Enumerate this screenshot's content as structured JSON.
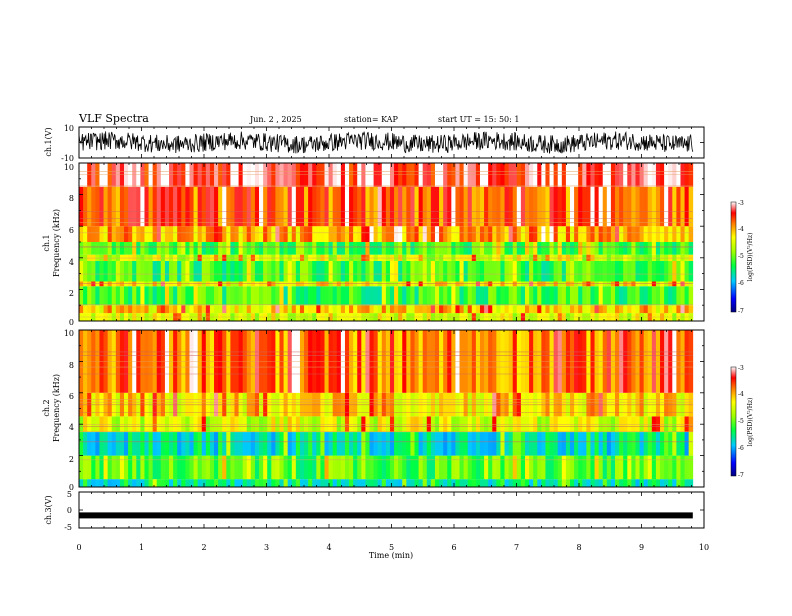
{
  "header": {
    "title": "VLF Spectra",
    "date": "Jun. 2 , 2025",
    "station": "station= KAP",
    "start_ut": "start UT =   15: 50: 1"
  },
  "chart_data": {
    "type": "heatmap",
    "x_axis": {
      "label": "Time (min)",
      "range": [
        0,
        10
      ],
      "ticks": [
        "0",
        "1",
        "2",
        "3",
        "4",
        "5",
        "6",
        "7",
        "8",
        "9",
        "10"
      ]
    },
    "panels": [
      {
        "id": "ch1_waveform",
        "type": "line",
        "ylabel": "ch.1(V)",
        "ylim": [
          -10,
          10
        ],
        "yticks": [
          "10",
          "-10"
        ]
      },
      {
        "id": "ch1_spectrum",
        "type": "heatmap",
        "ylabel": "ch.1",
        "ylabel2": "Frequency (kHz)",
        "ylim": [
          0,
          10
        ],
        "yticks": [
          "0",
          "2",
          "4",
          "6",
          "8",
          "10"
        ],
        "colorbar": {
          "label": "log(PSD)(V²/Hz)",
          "range": [
            -7,
            -3
          ],
          "ticks": [
            "-3",
            "-4",
            "-5",
            "-6",
            "-7"
          ]
        },
        "bands": [
          {
            "fmin": 0.0,
            "fmax": 0.5,
            "level": -4.5
          },
          {
            "fmin": 0.5,
            "fmax": 1.0,
            "level": -4.2
          },
          {
            "fmin": 1.0,
            "fmax": 2.2,
            "level": -5.2
          },
          {
            "fmin": 2.2,
            "fmax": 2.5,
            "level": -4.3
          },
          {
            "fmin": 2.5,
            "fmax": 3.8,
            "level": -5.2
          },
          {
            "fmin": 3.8,
            "fmax": 4.2,
            "level": -4.6
          },
          {
            "fmin": 4.2,
            "fmax": 5.0,
            "level": -5.1
          },
          {
            "fmin": 5.0,
            "fmax": 6.0,
            "level": -4.0
          },
          {
            "fmin": 6.0,
            "fmax": 8.5,
            "level": -3.7
          },
          {
            "fmin": 8.5,
            "fmax": 10.0,
            "level": -3.3
          }
        ]
      },
      {
        "id": "ch2_spectrum",
        "type": "heatmap",
        "ylabel": "ch.2",
        "ylabel2": "Frequency (kHz)",
        "ylim": [
          0,
          10
        ],
        "yticks": [
          "0",
          "2",
          "4",
          "6",
          "8",
          "10"
        ],
        "colorbar": {
          "label": "log(PSD)(V²/Hz)",
          "range": [
            -7,
            -3
          ],
          "ticks": [
            "-3",
            "-4",
            "-5",
            "-6",
            "-7"
          ]
        },
        "bands": [
          {
            "fmin": 0.0,
            "fmax": 0.5,
            "level": -5.5
          },
          {
            "fmin": 0.5,
            "fmax": 2.0,
            "level": -5.1
          },
          {
            "fmin": 2.0,
            "fmax": 3.5,
            "level": -5.6
          },
          {
            "fmin": 3.5,
            "fmax": 4.5,
            "level": -4.5
          },
          {
            "fmin": 4.5,
            "fmax": 6.0,
            "level": -4.2
          },
          {
            "fmin": 6.0,
            "fmax": 10.0,
            "level": -3.8
          }
        ]
      },
      {
        "id": "ch3_waveform",
        "type": "line",
        "ylabel": "ch.3(V)",
        "ylim": [
          -5,
          5
        ],
        "yticks": [
          "5",
          "0",
          "-5"
        ],
        "level": -1.5
      }
    ]
  }
}
